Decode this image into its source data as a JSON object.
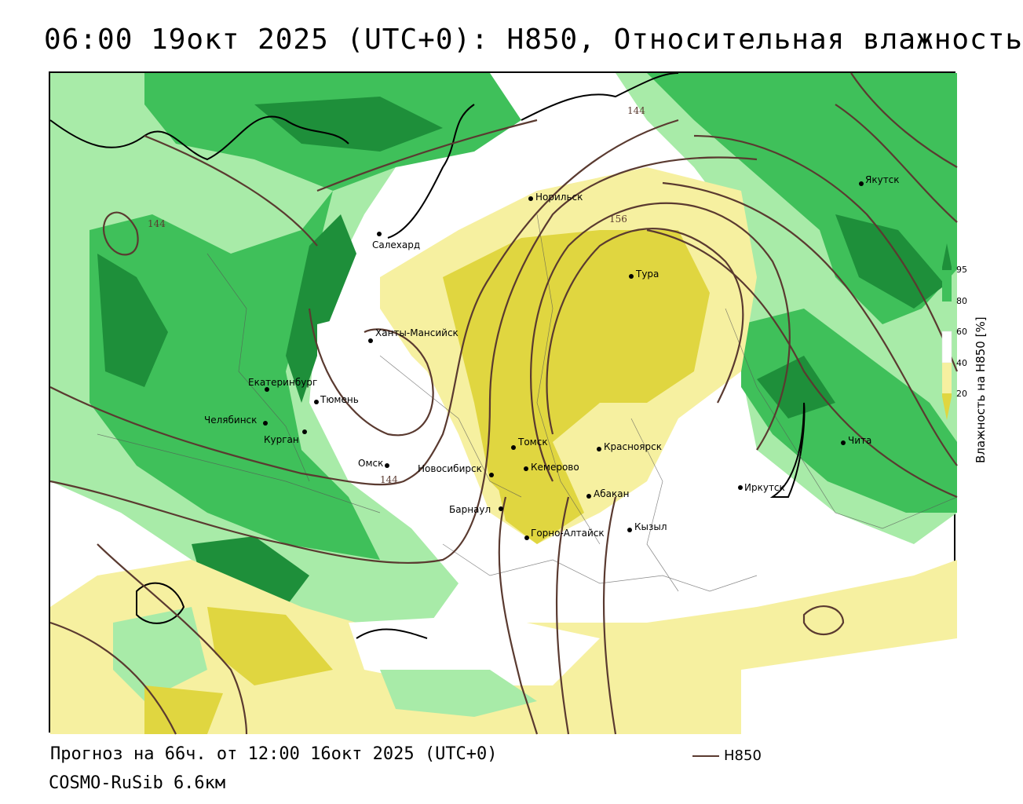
{
  "title": "06:00 19окт 2025 (UTC+0): H850, Относительная влажность",
  "footer": {
    "forecast": "Прогноз на 66ч. от 12:00 16окт 2025 (UTC+0)",
    "model": "COSMO-RuSib 6.6км",
    "line_legend_label": "H850"
  },
  "legend": {
    "title": "Влажность на H850 [%]",
    "ticks": [
      "95",
      "80",
      "60",
      "40",
      "20"
    ],
    "colors": {
      "c95": "#1e8f3a",
      "c80": "#3fc05a",
      "c60": "#a8eba8",
      "c40": "#ffffff",
      "c20": "#f6f0a0",
      "c0": "#e0d640"
    }
  },
  "contours": {
    "color": "#5a3a30",
    "labels": [
      "144",
      "156",
      "144",
      "144"
    ]
  },
  "cities": [
    {
      "name": "Салехард"
    },
    {
      "name": "Норильск"
    },
    {
      "name": "Якутск"
    },
    {
      "name": "Тура"
    },
    {
      "name": "Ханты-Мансийск"
    },
    {
      "name": "Екатеринбург"
    },
    {
      "name": "Тюмень"
    },
    {
      "name": "Челябинск"
    },
    {
      "name": "Курган"
    },
    {
      "name": "Омск"
    },
    {
      "name": "Новосибирск"
    },
    {
      "name": "Томск"
    },
    {
      "name": "Кемерово"
    },
    {
      "name": "Красноярск"
    },
    {
      "name": "Барнаул"
    },
    {
      "name": "Абакан"
    },
    {
      "name": "Горно-Алтайск"
    },
    {
      "name": "Кызыл"
    },
    {
      "name": "Иркутск"
    },
    {
      "name": "Чита"
    }
  ]
}
